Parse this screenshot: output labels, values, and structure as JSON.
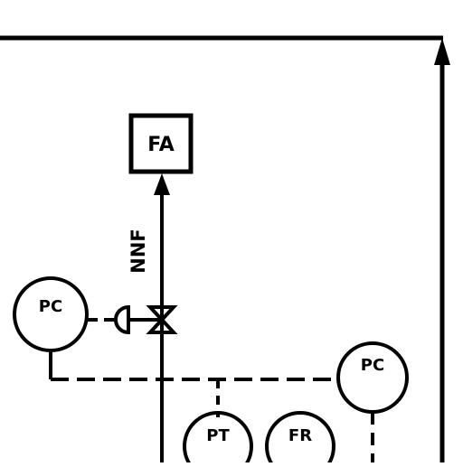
{
  "diagram": {
    "boxes": [
      {
        "id": "fa",
        "label": "FA"
      }
    ],
    "instruments": [
      {
        "id": "pc_left",
        "label": "PC"
      },
      {
        "id": "pc_right",
        "label": "PC"
      },
      {
        "id": "pt",
        "label": "PT"
      },
      {
        "id": "fr",
        "label": "FR"
      }
    ],
    "line_labels": [
      {
        "id": "nnf",
        "label": "NNF"
      }
    ]
  }
}
